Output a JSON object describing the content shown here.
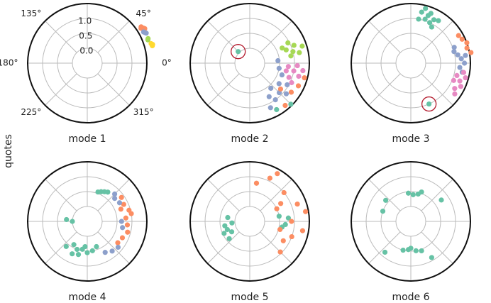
{
  "ylabel": "quotes",
  "chart_data": [
    {
      "type": "polar_scatter",
      "title": "mode 1",
      "rlim": [
        -0.5,
        1.5
      ],
      "tick_labels": true,
      "rticks": [
        {
          "value": 0,
          "label": "0.0"
        },
        {
          "value": 0.5,
          "label": "0.5"
        },
        {
          "value": 1,
          "label": "1.0"
        }
      ],
      "thetaticks": [
        {
          "value": 0,
          "label": "0°"
        },
        {
          "value": 45,
          "label": "45°"
        },
        {
          "value": 90,
          "label": null
        },
        {
          "value": 135,
          "label": "135°"
        },
        {
          "value": 180,
          "label": "180°"
        },
        {
          "value": 225,
          "label": "225°"
        },
        {
          "value": 270,
          "label": null
        },
        {
          "value": 315,
          "label": "315°"
        }
      ],
      "series": [
        {
          "color": "#fc8d62",
          "theta": [
            34,
            32,
            31,
            33
          ],
          "r": [
            1.68,
            1.72,
            1.75,
            1.65
          ]
        },
        {
          "color": "#8da0cb",
          "theta": [
            28,
            27,
            29
          ],
          "r": [
            1.69,
            1.72,
            1.66
          ]
        },
        {
          "color": "#a6d854",
          "theta": [
            22,
            21
          ],
          "r": [
            1.7,
            1.68
          ]
        },
        {
          "color": "#ffd92f",
          "theta": [
            17,
            16,
            15
          ],
          "r": [
            1.74,
            1.78,
            1.76
          ]
        }
      ]
    },
    {
      "type": "polar_scatter",
      "title": "mode 2",
      "rlim": [
        -0.5,
        1.5
      ],
      "tick_labels": false,
      "rticks": [
        0,
        0.5,
        1
      ],
      "thetaticks": [
        0,
        45,
        90,
        135,
        180,
        225,
        270,
        315
      ],
      "series": [
        {
          "color": "#a6d854",
          "theta": [
            20,
            15,
            12,
            18,
            25,
            22,
            10,
            28
          ],
          "r": [
            0.8,
            1.0,
            1.2,
            1.35,
            0.7,
            1.1,
            0.9,
            0.95
          ]
        },
        {
          "color": "#e78ac3",
          "theta": [
            355,
            350,
            345,
            352,
            340,
            357,
            348,
            335
          ],
          "r": [
            0.8,
            1.0,
            1.2,
            1.3,
            0.9,
            1.1,
            0.75,
            1.05
          ]
        },
        {
          "color": "#8da0cb",
          "theta": [
            325,
            315,
            305,
            300,
            320,
            310,
            330,
            295,
            340,
            5,
            350
          ],
          "r": [
            0.7,
            0.9,
            1.0,
            0.8,
            1.1,
            0.6,
            0.95,
            1.15,
            0.65,
            0.45,
            0.5
          ]
        },
        {
          "color": "#fc8d62",
          "theta": [
            335,
            325,
            310,
            345,
            320
          ],
          "r": [
            1.3,
            1.2,
            1.35,
            1.4,
            0.85
          ]
        },
        {
          "color": "#66c2a5",
          "theta": [
            135,
            315,
            300
          ],
          "r": [
            0.05,
            1.45,
            1.3
          ]
        }
      ],
      "highlight": {
        "color": "#b2182b",
        "theta": 135,
        "r": 0.05
      }
    },
    {
      "type": "polar_scatter",
      "title": "mode 3",
      "rlim": [
        -0.5,
        1.5
      ],
      "tick_labels": false,
      "rticks": [
        0,
        0.5,
        1
      ],
      "thetaticks": [
        0,
        45,
        90,
        135,
        180,
        225,
        270,
        315
      ],
      "series": [
        {
          "color": "#66c2a5",
          "theta": [
            75,
            70,
            65,
            60,
            72,
            68,
            62,
            78,
            80,
            57,
            294
          ],
          "r": [
            1.4,
            1.2,
            1.0,
            0.9,
            1.05,
            1.3,
            1.15,
            1.25,
            1.0,
            1.2,
            1.0
          ]
        },
        {
          "color": "#fc8d62",
          "theta": [
            20,
            15,
            25,
            10,
            30
          ],
          "r": [
            1.5,
            1.45,
            1.4,
            1.55,
            1.35
          ]
        },
        {
          "color": "#8da0cb",
          "theta": [
            10,
            5,
            0,
            15,
            355,
            20,
            8,
            350
          ],
          "r": [
            1.1,
            1.2,
            1.3,
            1.0,
            1.15,
            1.05,
            1.35,
            1.25
          ]
        },
        {
          "color": "#e78ac3",
          "theta": [
            345,
            340,
            335,
            345,
            330,
            338,
            350,
            325
          ],
          "r": [
            1.1,
            1.25,
            1.35,
            1.4,
            1.2,
            1.05,
            1.3,
            1.3
          ]
        }
      ],
      "highlight": {
        "color": "#b2182b",
        "theta": 294,
        "r": 1.0
      }
    },
    {
      "type": "polar_scatter",
      "title": "mode 4",
      "rlim": [
        -0.5,
        1.5
      ],
      "tick_labels": false,
      "rticks": [
        0,
        0.5,
        1
      ],
      "thetaticks": [
        0,
        45,
        90,
        135,
        180,
        225,
        270,
        315
      ],
      "series": [
        {
          "color": "#66c2a5",
          "theta": [
            65,
            60,
            70,
            55,
            240,
            250,
            260,
            270,
            280,
            230,
            255,
            290,
            265,
            245,
            180,
            175
          ],
          "r": [
            0.6,
            0.65,
            0.55,
            0.7,
            0.4,
            0.5,
            0.45,
            0.55,
            0.5,
            0.6,
            0.65,
            0.4,
            0.35,
            0.7,
            0.0,
            0.2
          ]
        },
        {
          "color": "#fc8d62",
          "theta": [
            35,
            25,
            15,
            5,
            355,
            345,
            335,
            325,
            20,
            10
          ],
          "r": [
            0.9,
            0.85,
            0.95,
            0.8,
            0.85,
            0.9,
            0.8,
            0.75,
            0.7,
            1.0
          ]
        },
        {
          "color": "#8da0cb",
          "theta": [
            40,
            30,
            0,
            350,
            320,
            310,
            300,
            45
          ],
          "r": [
            0.7,
            0.75,
            0.65,
            0.7,
            0.85,
            0.8,
            0.7,
            0.8
          ]
        }
      ]
    },
    {
      "type": "polar_scatter",
      "title": "mode 5",
      "rlim": [
        -0.5,
        1.5
      ],
      "tick_labels": false,
      "rticks": [
        0,
        0.5,
        1
      ],
      "thetaticks": [
        0,
        45,
        90,
        135,
        180,
        225,
        270,
        315
      ],
      "series": [
        {
          "color": "#66c2a5",
          "theta": [
            200,
            210,
            190,
            220,
            185,
            170,
            205,
            10,
            350,
            355,
            5
          ],
          "r": [
            0.3,
            0.2,
            0.35,
            0.4,
            0.1,
            0.25,
            0.45,
            0.5,
            0.6,
            0.7,
            0.8
          ]
        },
        {
          "color": "#fc8d62",
          "theta": [
            65,
            40,
            30,
            20,
            10,
            0,
            350,
            340,
            330,
            80,
            60,
            25,
            345,
            315
          ],
          "r": [
            1.1,
            1.0,
            0.7,
            1.2,
            1.4,
            0.9,
            1.3,
            1.0,
            0.8,
            0.8,
            1.35,
            0.5,
            0.55,
            0.95
          ]
        }
      ]
    },
    {
      "type": "polar_scatter",
      "title": "mode 6",
      "rlim": [
        -0.5,
        1.5
      ],
      "tick_labels": false,
      "rticks": [
        0,
        0.5,
        1
      ],
      "thetaticks": [
        0,
        45,
        90,
        135,
        180,
        225,
        270,
        315
      ],
      "series": [
        {
          "color": "#66c2a5",
          "theta": [
            75,
            85,
            95,
            70,
            140,
            35,
            270,
            265,
            280,
            255,
            290,
            300,
            230,
            160
          ],
          "r": [
            0.45,
            0.4,
            0.45,
            0.55,
            0.6,
            0.75,
            0.4,
            0.45,
            0.5,
            0.5,
            0.55,
            0.9,
            0.85,
            0.5
          ]
        }
      ]
    }
  ]
}
